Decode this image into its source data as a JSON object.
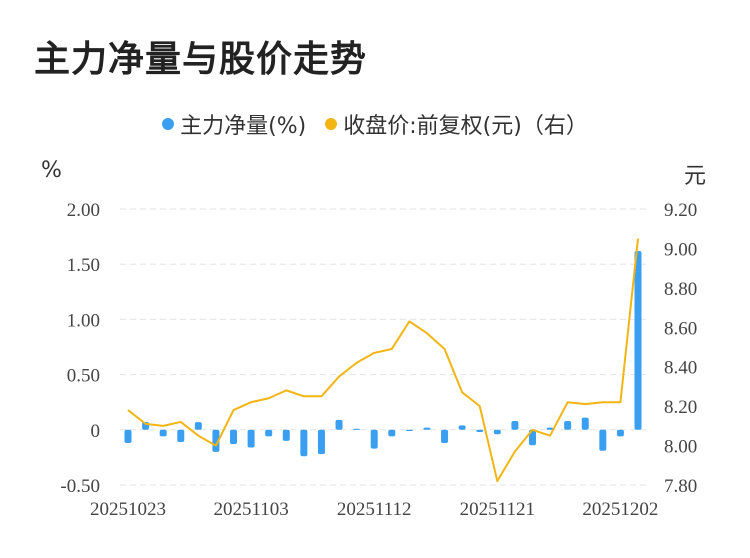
{
  "title": "主力净量与股价走势",
  "legend": {
    "series1": "主力净量(%)",
    "series2": "收盘价:前复权(元)（右）"
  },
  "units": {
    "left": "%",
    "right": "元"
  },
  "colors": {
    "bar": "#3a9ff0",
    "line": "#f3b514",
    "grid": "#e3e3e3"
  },
  "chart_data": {
    "type": "bar+line",
    "title": "主力净量与股价走势",
    "x_tick_labels": [
      "20251023",
      "20251103",
      "20251112",
      "20251121",
      "20251202"
    ],
    "x_tick_indices": [
      0,
      7,
      14,
      21,
      28
    ],
    "left_axis": {
      "label": "%",
      "ylim": [
        -0.5,
        2.0
      ],
      "ticks": [
        "2.00",
        "1.50",
        "1.00",
        "0.50",
        "0",
        "-0.50"
      ],
      "tick_values": [
        2.0,
        1.5,
        1.0,
        0.5,
        0,
        -0.5
      ]
    },
    "right_axis": {
      "label": "元",
      "ylim": [
        7.8,
        9.2
      ],
      "ticks": [
        "9.20",
        "9.00",
        "8.80",
        "8.60",
        "8.40",
        "8.20",
        "8.00",
        "7.80"
      ],
      "tick_values": [
        9.2,
        9.0,
        8.8,
        8.6,
        8.4,
        8.2,
        8.0,
        7.8
      ]
    },
    "grid": true,
    "legend_position": "top",
    "series": [
      {
        "name": "主力净量(%)",
        "type": "bar",
        "axis": "left",
        "values": [
          -0.12,
          0.07,
          -0.06,
          -0.11,
          0.07,
          -0.2,
          -0.13,
          -0.16,
          -0.06,
          -0.1,
          -0.24,
          -0.22,
          0.09,
          0.01,
          -0.17,
          -0.06,
          -0.01,
          0.02,
          -0.12,
          0.04,
          -0.02,
          -0.04,
          0.08,
          -0.14,
          0.02,
          0.08,
          0.11,
          -0.19,
          -0.06,
          1.62
        ]
      },
      {
        "name": "收盘价:前复权(元)（右）",
        "type": "line",
        "axis": "right",
        "values": [
          8.18,
          8.11,
          8.1,
          8.12,
          8.05,
          8.0,
          8.18,
          8.22,
          8.24,
          8.28,
          8.25,
          8.25,
          8.35,
          8.42,
          8.47,
          8.49,
          8.63,
          8.57,
          8.49,
          8.27,
          8.2,
          7.82,
          7.97,
          8.08,
          8.05,
          8.22,
          8.21,
          8.22,
          8.22,
          9.05
        ]
      }
    ]
  }
}
